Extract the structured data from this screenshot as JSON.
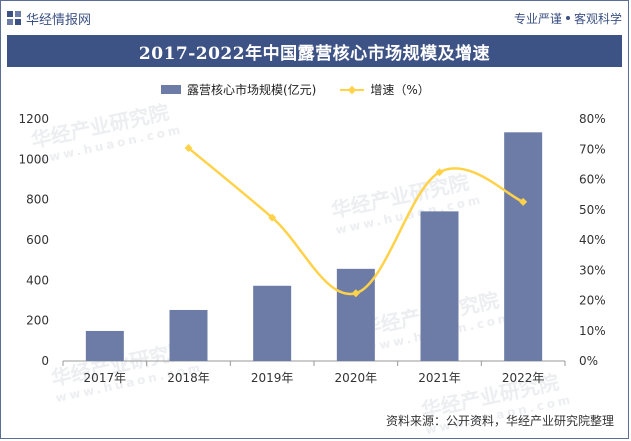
{
  "header": {
    "brand_name": "华经情报网",
    "slogan_left": "专业严谨",
    "slogan_right": "客观科学"
  },
  "watermark": {
    "text": "华经产业研究院",
    "url": "www.huaon.com"
  },
  "source_text": "资料来源：公开资料，华经产业研究院整理",
  "colors": {
    "bar": "#6c7ca6",
    "line": "#ffd24a",
    "title_bg": "#3d5285",
    "brand": "#3c5183"
  },
  "chart_data": {
    "type": "bar",
    "title": "2017-2022年中国露营核心市场规模及增速",
    "categories": [
      "2017年",
      "2018年",
      "2019年",
      "2020年",
      "2021年",
      "2022年"
    ],
    "series": [
      {
        "name": "露营核心市场规模(亿元)",
        "type": "bar",
        "axis": "left",
        "values": [
          149,
          253,
          373,
          457,
          742,
          1134
        ]
      },
      {
        "name": "增速（%）",
        "type": "line",
        "axis": "right",
        "values": [
          null,
          70.4,
          47.4,
          22.4,
          62.4,
          52.6
        ]
      }
    ],
    "y_left": {
      "min": 0,
      "max": 1200,
      "ticks": [
        "0",
        "200",
        "400",
        "600",
        "800",
        "1000",
        "1200"
      ]
    },
    "y_right": {
      "min": 0,
      "max": 80,
      "ticks": [
        "0%",
        "10%",
        "20%",
        "30%",
        "40%",
        "50%",
        "60%",
        "70%",
        "80%"
      ]
    },
    "grid": false,
    "legend_position": "top"
  }
}
